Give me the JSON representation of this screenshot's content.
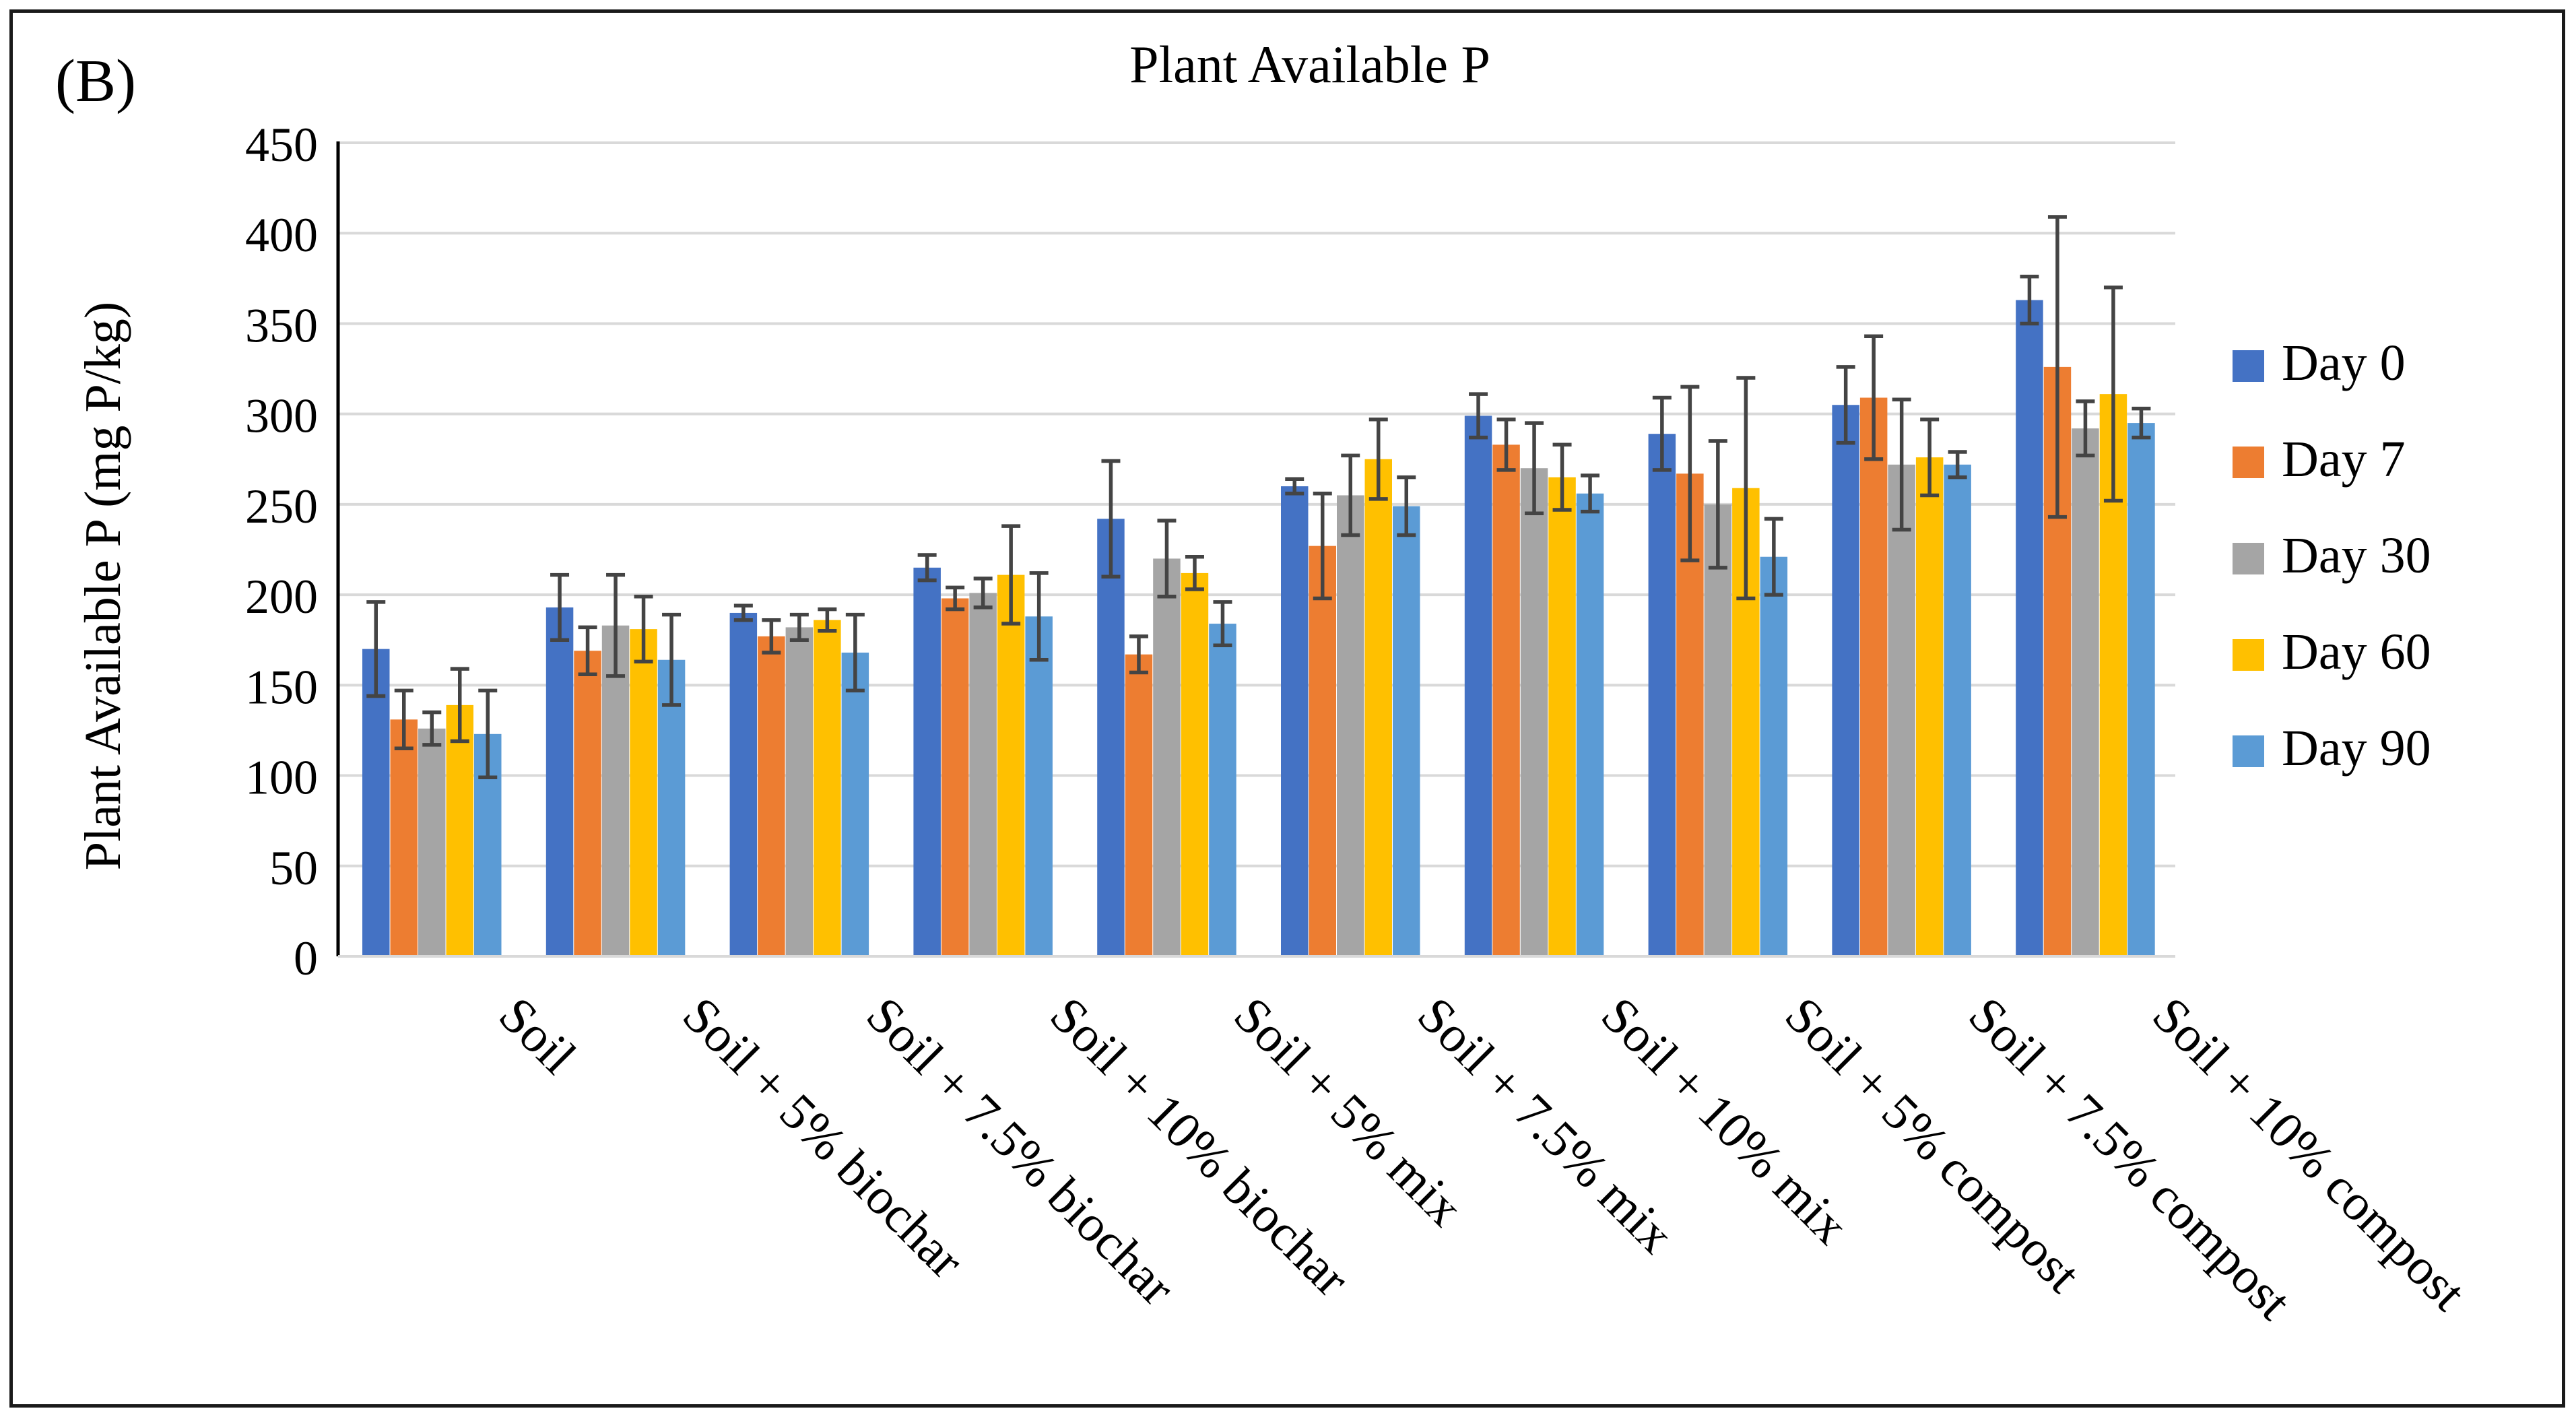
{
  "panel_label": "(B)",
  "chart_data": {
    "type": "bar",
    "title": "Plant Available P",
    "xlabel": "",
    "ylabel": "Plant Available P (mg P/kg)",
    "ylim": [
      0,
      450
    ],
    "yticks": [
      0,
      50,
      100,
      150,
      200,
      250,
      300,
      350,
      400,
      450
    ],
    "grid": true,
    "legend_position": "right",
    "error_bars": true,
    "categories": [
      "Soil",
      "Soil + 5% biochar",
      "Soil + 7.5% biochar",
      "Soil + 10% biochar",
      "Soil + 5% mix",
      "Soil + 7.5% mix",
      "Soil + 10% mix",
      "Soil + 5% compost",
      "Soil + 7.5% compost",
      "Soil + 10% compost"
    ],
    "series": [
      {
        "name": "Day 0",
        "color": "#4472c4",
        "values": [
          170,
          193,
          190,
          215,
          242,
          260,
          299,
          289,
          305,
          363
        ],
        "errors": [
          26,
          18,
          4,
          7,
          32,
          4,
          12,
          20,
          21,
          13
        ]
      },
      {
        "name": "Day 7",
        "color": "#ed7d31",
        "values": [
          131,
          169,
          177,
          198,
          167,
          227,
          283,
          267,
          309,
          326
        ],
        "errors": [
          16,
          13,
          9,
          6,
          10,
          29,
          14,
          48,
          34,
          83
        ]
      },
      {
        "name": "Day 30",
        "color": "#a5a5a5",
        "values": [
          126,
          183,
          182,
          201,
          220,
          255,
          270,
          250,
          272,
          292
        ],
        "errors": [
          9,
          28,
          7,
          8,
          21,
          22,
          25,
          35,
          36,
          15
        ]
      },
      {
        "name": "Day 60",
        "color": "#ffc000",
        "values": [
          139,
          181,
          186,
          211,
          212,
          275,
          265,
          259,
          276,
          311
        ],
        "errors": [
          20,
          18,
          6,
          27,
          9,
          22,
          18,
          61,
          21,
          59
        ]
      },
      {
        "name": "Day 90",
        "color": "#5b9bd5",
        "values": [
          123,
          164,
          168,
          188,
          184,
          249,
          256,
          221,
          272,
          295
        ],
        "errors": [
          24,
          25,
          21,
          24,
          12,
          16,
          10,
          21,
          7,
          8
        ]
      }
    ]
  }
}
